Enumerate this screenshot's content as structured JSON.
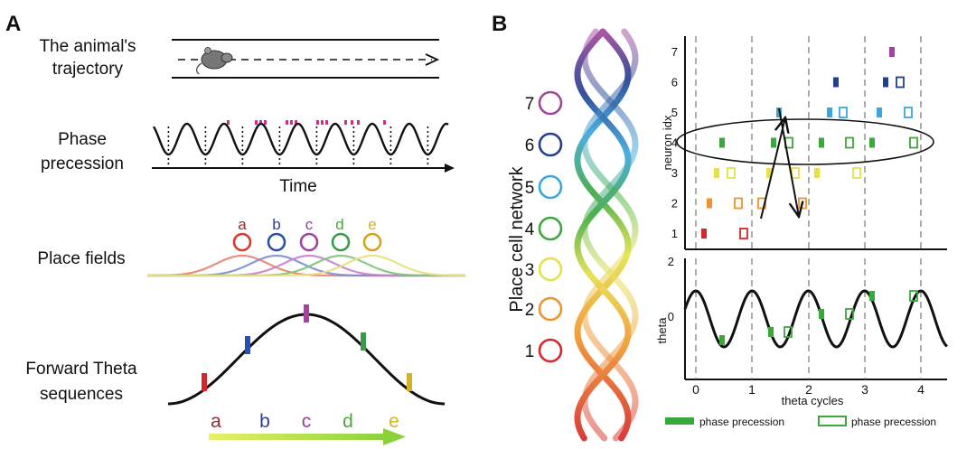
{
  "panel_a": {
    "label": "A",
    "trajectory_label": [
      "The animal's",
      "trajectory"
    ],
    "phase_label": [
      "Phase",
      "precession"
    ],
    "time_label": "Time",
    "place_fields_label": "Place fields",
    "forward_label": [
      "Forward Theta",
      "sequences"
    ],
    "field_letters": [
      "a",
      "b",
      "c",
      "d",
      "e"
    ],
    "sequence_letters": [
      "a",
      "b",
      "c",
      "d",
      "e"
    ]
  },
  "panel_b": {
    "label": "B",
    "network_label": "Place cell network",
    "neuron_numbers": [
      "7",
      "6",
      "5",
      "4",
      "3",
      "2",
      "1"
    ],
    "raster": {
      "ylabel": "neuron idx",
      "yticks": [
        "1",
        "2",
        "3",
        "4",
        "5",
        "6",
        "7"
      ]
    },
    "theta_plot": {
      "ylabel": "theta",
      "yticks": [
        "2",
        "0"
      ],
      "xlabel": "theta cycles",
      "xticks": [
        "0",
        "1",
        "2",
        "3",
        "4"
      ]
    },
    "legend": {
      "filled": "phase precession",
      "open": "phase precession"
    }
  },
  "colors": {
    "n1": "#d62728",
    "n2": "#f0932b",
    "n3": "#e6e04a",
    "n4": "#3aa83a",
    "n5": "#3aa6dc",
    "n6": "#1f3f8f",
    "n7": "#a0449c",
    "a": "#8b2e2e",
    "b": "#2b3f9a",
    "c": "#9a3d9e",
    "d": "#4aa63a",
    "e": "#d6b02a",
    "spike": "#d6298a",
    "field_ring_a": "#d63b2b",
    "field_ring_b": "#2b4fae",
    "field_ring_c": "#a0449c",
    "field_ring_d": "#3a9a4a",
    "field_ring_e": "#d6a020"
  }
}
